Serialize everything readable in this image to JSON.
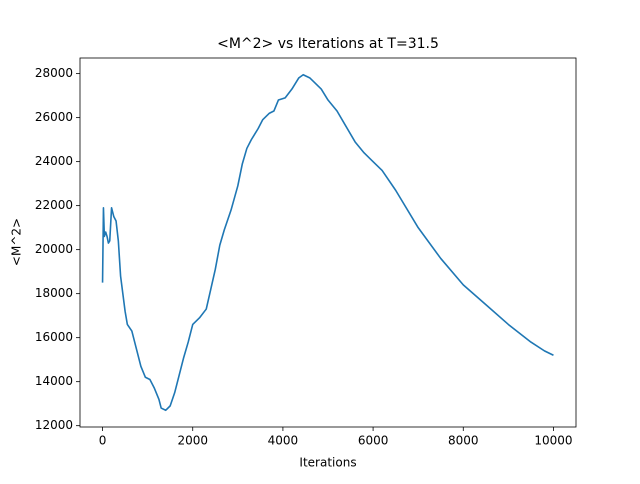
{
  "chart_data": {
    "type": "line",
    "title": "<M^2> vs Iterations at T=31.5",
    "xlabel": "Iterations",
    "ylabel": "<M^2>",
    "x": [
      0,
      20,
      40,
      70,
      100,
      130,
      160,
      200,
      250,
      300,
      350,
      400,
      500,
      550,
      650,
      750,
      850,
      950,
      1050,
      1150,
      1250,
      1300,
      1400,
      1500,
      1600,
      1700,
      1800,
      1900,
      2000,
      2150,
      2300,
      2400,
      2500,
      2600,
      2700,
      2850,
      3000,
      3100,
      3200,
      3300,
      3450,
      3550,
      3700,
      3800,
      3900,
      4050,
      4200,
      4350,
      4450,
      4600,
      4700,
      4850,
      5000,
      5200,
      5400,
      5600,
      5800,
      6000,
      6200,
      6500,
      7000,
      7500,
      8000,
      8500,
      9000,
      9500,
      9800,
      10000
    ],
    "series": [
      {
        "name": "<M^2>",
        "color": "#1f77b4",
        "values": [
          18500,
          21900,
          20600,
          20800,
          20600,
          20300,
          20400,
          21900,
          21500,
          21300,
          20400,
          18800,
          17200,
          16600,
          16300,
          15500,
          14700,
          14200,
          14100,
          13700,
          13200,
          12800,
          12700,
          12900,
          13500,
          14300,
          15100,
          15800,
          16600,
          16900,
          17300,
          18200,
          19100,
          20200,
          20900,
          21800,
          22900,
          23900,
          24600,
          25000,
          25500,
          25900,
          26200,
          26300,
          26800,
          26900,
          27300,
          27800,
          27950,
          27800,
          27600,
          27300,
          26800,
          26300,
          25600,
          24900,
          24400,
          24000,
          23600,
          22700,
          21000,
          19600,
          18400,
          17500,
          16600,
          15800,
          15400,
          15200
        ]
      }
    ],
    "xlim": [
      -500,
      10500
    ],
    "ylim": [
      11940,
      28710
    ],
    "xticks": [
      0,
      2000,
      4000,
      6000,
      8000,
      10000
    ],
    "yticks": [
      12000,
      14000,
      16000,
      18000,
      20000,
      22000,
      24000,
      26000,
      28000
    ],
    "grid": false
  }
}
